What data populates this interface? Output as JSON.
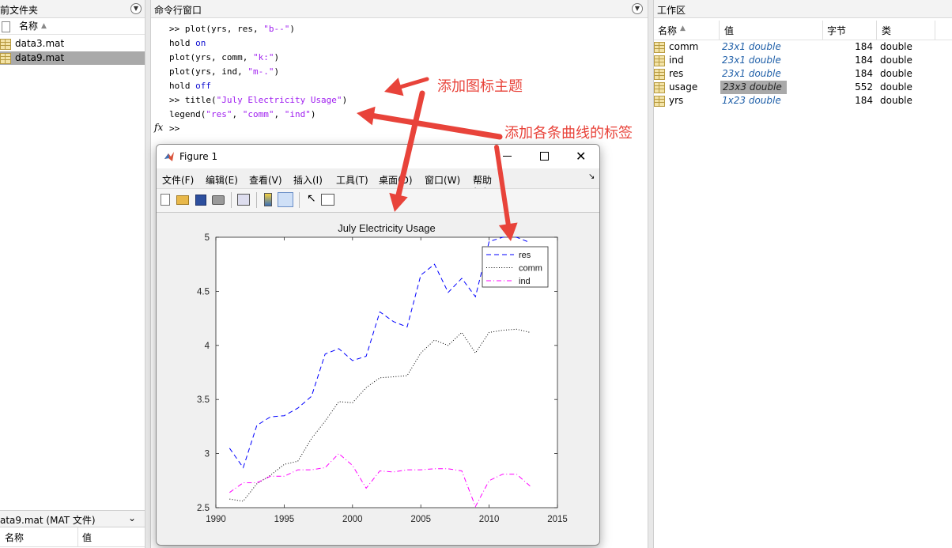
{
  "current_folder": {
    "title": "前文件夹",
    "column_name": "名称",
    "files": [
      "data3.mat",
      "data9.mat"
    ],
    "details_title": "ata9.mat  (MAT 文件)",
    "details_cols": [
      "名称",
      "值"
    ]
  },
  "command_window": {
    "title": "命令行窗口",
    "prompt": ">>",
    "fx": "fx",
    "lines": [
      [
        {
          "t": ">> plot(yrs, res, ",
          "c": "n"
        },
        {
          "t": "\"b--\"",
          "c": "s"
        },
        {
          "t": ")",
          "c": "n"
        }
      ],
      [
        {
          "t": "hold ",
          "c": "n"
        },
        {
          "t": "on",
          "c": "k"
        }
      ],
      [
        {
          "t": "plot(yrs, comm, ",
          "c": "n"
        },
        {
          "t": "\"k:\"",
          "c": "s"
        },
        {
          "t": ")",
          "c": "n"
        }
      ],
      [
        {
          "t": "plot(yrs, ind, ",
          "c": "n"
        },
        {
          "t": "\"m-.\"",
          "c": "s"
        },
        {
          "t": ")",
          "c": "n"
        }
      ],
      [
        {
          "t": "hold ",
          "c": "n"
        },
        {
          "t": "off",
          "c": "k"
        }
      ],
      [
        {
          "t": ">> title(",
          "c": "n"
        },
        {
          "t": "\"July Electricity Usage\"",
          "c": "s"
        },
        {
          "t": ")",
          "c": "n"
        }
      ],
      [
        {
          "t": "legend(",
          "c": "n"
        },
        {
          "t": "\"res\"",
          "c": "s"
        },
        {
          "t": ", ",
          "c": "n"
        },
        {
          "t": "\"comm\"",
          "c": "s"
        },
        {
          "t": ", ",
          "c": "n"
        },
        {
          "t": "\"ind\"",
          "c": "s"
        },
        {
          "t": ")",
          "c": "n"
        }
      ]
    ]
  },
  "figure": {
    "window_title": "Figure 1",
    "menu": [
      "文件(F)",
      "编辑(E)",
      "查看(V)",
      "插入(I)",
      "工具(T)",
      "桌面(D)",
      "窗口(W)",
      "帮助(H)"
    ],
    "toolbar_icons": [
      "new-icon",
      "open-icon",
      "save-icon",
      "print-icon",
      "link-icon",
      "colorbar-icon",
      "legend-icon",
      "pointer-icon",
      "property-icon"
    ]
  },
  "chart_data": {
    "type": "line",
    "title": "July Electricity Usage",
    "xlim": [
      1990,
      2015
    ],
    "ylim": [
      2.5,
      5
    ],
    "xticks": [
      "1990",
      "1995",
      "2000",
      "2005",
      "2010",
      "2015"
    ],
    "yticks": [
      "2.5",
      "3",
      "3.5",
      "4",
      "4.5",
      "5"
    ],
    "legend_position": "top-right",
    "x": [
      1991,
      1992,
      1993,
      1994,
      1995,
      1996,
      1997,
      1998,
      1999,
      2000,
      2001,
      2002,
      2003,
      2004,
      2005,
      2006,
      2007,
      2008,
      2009,
      2010,
      2011,
      2012,
      2013
    ],
    "series": [
      {
        "name": "res",
        "color": "#0000ff",
        "style": "dashed",
        "values": [
          3.05,
          2.87,
          3.26,
          3.34,
          3.35,
          3.42,
          3.53,
          3.92,
          3.97,
          3.86,
          3.9,
          4.31,
          4.22,
          4.17,
          4.65,
          4.75,
          4.49,
          4.62,
          4.45,
          4.96,
          5.0,
          5.0,
          4.95
        ]
      },
      {
        "name": "comm",
        "color": "#000000",
        "style": "dotted",
        "values": [
          2.58,
          2.56,
          2.72,
          2.8,
          2.9,
          2.93,
          3.14,
          3.3,
          3.48,
          3.47,
          3.61,
          3.7,
          3.71,
          3.72,
          3.93,
          4.05,
          4.0,
          4.12,
          3.93,
          4.12,
          4.14,
          4.15,
          4.12
        ]
      },
      {
        "name": "ind",
        "color": "#ff00ff",
        "style": "dashdot",
        "values": [
          2.64,
          2.73,
          2.73,
          2.79,
          2.79,
          2.85,
          2.85,
          2.87,
          3.0,
          2.89,
          2.68,
          2.84,
          2.83,
          2.85,
          2.85,
          2.86,
          2.86,
          2.84,
          2.51,
          2.75,
          2.81,
          2.81,
          2.7
        ]
      }
    ]
  },
  "workspace": {
    "title": "工作区",
    "columns": [
      "名称",
      "值",
      "字节",
      "类"
    ],
    "rows": [
      {
        "name": "comm",
        "value": "23x1 double",
        "bytes": "184",
        "cls": "double"
      },
      {
        "name": "ind",
        "value": "23x1 double",
        "bytes": "184",
        "cls": "double"
      },
      {
        "name": "res",
        "value": "23x1 double",
        "bytes": "184",
        "cls": "double"
      },
      {
        "name": "usage",
        "value": "23x3 double",
        "bytes": "552",
        "cls": "double"
      },
      {
        "name": "yrs",
        "value": "1x23 double",
        "bytes": "184",
        "cls": "double"
      }
    ]
  },
  "annotations": {
    "title_note": "添加图标主题",
    "legend_note": "添加各条曲线的标签",
    "color": "#e8433a"
  }
}
